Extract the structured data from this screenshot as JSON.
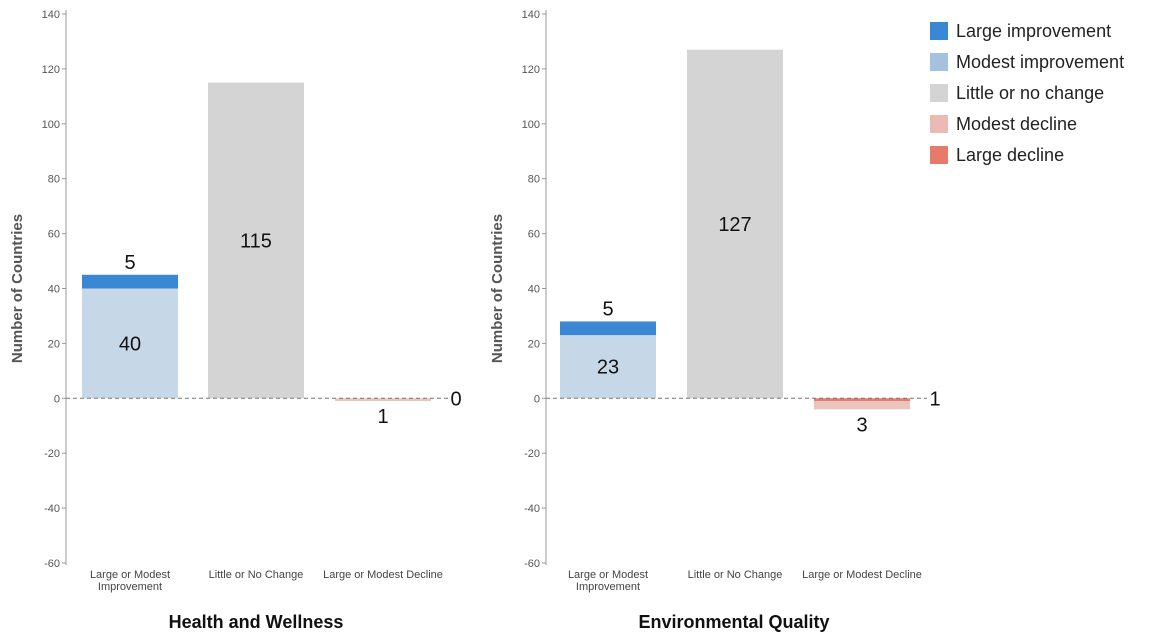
{
  "chart_data": [
    {
      "type": "bar",
      "title": "Health and Wellness",
      "ylabel": "Number of Countries",
      "xlabel": "",
      "ylim": [
        -60,
        140
      ],
      "yticks": [
        -60,
        -40,
        -20,
        0,
        20,
        40,
        60,
        80,
        100,
        120,
        140
      ],
      "categories": [
        "Large or Modest Improvement",
        "Little or No Change",
        "Large or Modest Decline"
      ],
      "series": [
        {
          "name": "Large improvement",
          "values": [
            5,
            0,
            0
          ]
        },
        {
          "name": "Modest improvement",
          "values": [
            40,
            0,
            0
          ]
        },
        {
          "name": "Little or no change",
          "values": [
            0,
            115,
            0
          ]
        },
        {
          "name": "Modest decline",
          "values": [
            0,
            0,
            1
          ]
        },
        {
          "name": "Large decline",
          "values": [
            0,
            0,
            0
          ]
        }
      ],
      "data_labels": [
        "5",
        "40",
        "115",
        "0",
        "1"
      ],
      "zero_line": "dashed",
      "grid": false
    },
    {
      "type": "bar",
      "title": "Environmental Quality",
      "ylabel": "Number of Countries",
      "xlabel": "",
      "ylim": [
        -60,
        140
      ],
      "yticks": [
        -60,
        -40,
        -20,
        0,
        20,
        40,
        60,
        80,
        100,
        120,
        140
      ],
      "categories": [
        "Large or Modest Improvement",
        "Little or No Change",
        "Large or Modest Decline"
      ],
      "series": [
        {
          "name": "Large improvement",
          "values": [
            5,
            0,
            0
          ]
        },
        {
          "name": "Modest improvement",
          "values": [
            23,
            0,
            0
          ]
        },
        {
          "name": "Little or no change",
          "values": [
            0,
            127,
            0
          ]
        },
        {
          "name": "Modest decline",
          "values": [
            0,
            0,
            3
          ]
        },
        {
          "name": "Large decline",
          "values": [
            0,
            0,
            1
          ]
        }
      ],
      "data_labels": [
        "5",
        "23",
        "127",
        "1",
        "3"
      ],
      "zero_line": "dashed",
      "grid": false
    }
  ],
  "legend": {
    "placement": "top-right",
    "items": [
      {
        "label": "Large improvement",
        "color": "#3a87d4"
      },
      {
        "label": "Modest improvement",
        "color": "#a3c2de"
      },
      {
        "label": "Little or no change",
        "color": "#d4d4d4"
      },
      {
        "label": "Modest decline",
        "color": "#ebbab3"
      },
      {
        "label": "Large decline",
        "color": "#e67b6c"
      }
    ]
  },
  "colors": {
    "large_improvement": "#3a87d4",
    "modest_improvement": "#c6d8e8",
    "little_change": "#d4d4d4",
    "modest_decline": "#ebc4be",
    "large_decline": "#e67b6c",
    "axis": "#999999"
  }
}
